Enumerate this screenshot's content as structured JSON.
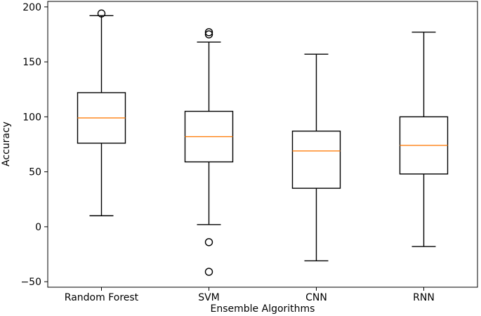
{
  "chart_data": {
    "type": "boxplot",
    "title": "",
    "xlabel": "Ensemble Algorithms",
    "ylabel": "Accuracy",
    "ylim": [
      -55,
      205
    ],
    "yticks": [
      -50,
      0,
      50,
      100,
      150,
      200
    ],
    "ytick_labels": [
      "−50",
      "0",
      "50",
      "100",
      "150",
      "200"
    ],
    "grid": false,
    "median_color": "#ff7f0e",
    "box_color": "#000000",
    "categories": [
      "Random Forest",
      "SVM",
      "CNN",
      "RNN"
    ],
    "boxes": [
      {
        "label": "Random Forest",
        "whisker_low": 10,
        "q1": 76,
        "median": 99,
        "q3": 122,
        "whisker_high": 192,
        "outliers": [
          194
        ]
      },
      {
        "label": "SVM",
        "whisker_low": 2,
        "q1": 59,
        "median": 82,
        "q3": 105,
        "whisker_high": 168,
        "outliers": [
          175,
          177,
          -14,
          -41
        ]
      },
      {
        "label": "CNN",
        "whisker_low": -31,
        "q1": 35,
        "median": 69,
        "q3": 87,
        "whisker_high": 157,
        "outliers": []
      },
      {
        "label": "RNN",
        "whisker_low": -18,
        "q1": 48,
        "median": 74,
        "q3": 100,
        "whisker_high": 177,
        "outliers": []
      }
    ]
  }
}
